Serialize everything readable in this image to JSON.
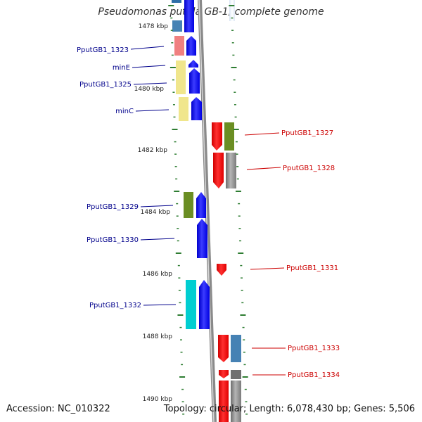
{
  "title": "Pseudomonas putida GB-1, complete genome",
  "footer": {
    "accession": "Accession: NC_010322",
    "summary": "Topology: circular; Length: 6,078,430 bp; Genes: 5,506"
  },
  "colors": {
    "left_label": "#00008b",
    "right_label": "#cc0000",
    "tick": "#2e7d32",
    "backbone": "#8a8a8a",
    "forward_gene": "#0000ff",
    "reverse_gene": "#ff0000"
  },
  "scale": {
    "kbp_labels": [
      "1478 kbp",
      "1480 kbp",
      "1482 kbp",
      "1484 kbp",
      "1486 kbp",
      "1488 kbp",
      "1490 kbp"
    ]
  },
  "genes": {
    "left": [
      {
        "label": "PputGB1_1323",
        "strand": "forward",
        "func_color": "#f08080"
      },
      {
        "label": "minE",
        "strand": "forward",
        "func_color": "#f0e68c"
      },
      {
        "label": "PputGB1_1325",
        "strand": "forward",
        "func_color": "#f0e68c"
      },
      {
        "label": "minC",
        "strand": "forward",
        "func_color": "#f0e68c"
      },
      {
        "label": "PputGB1_1329",
        "strand": "forward",
        "func_color": "#6b8e23"
      },
      {
        "label": "PputGB1_1330",
        "strand": "forward",
        "func_color": ""
      },
      {
        "label": "PputGB1_1332",
        "strand": "forward",
        "func_color": "#00ced1"
      }
    ],
    "right": [
      {
        "label": "PputGB1_1327",
        "strand": "reverse",
        "func_color": "#6b8e23"
      },
      {
        "label": "PputGB1_1328",
        "strand": "reverse",
        "func_color": "#c0c0c0"
      },
      {
        "label": "PputGB1_1331",
        "strand": "reverse",
        "func_color": ""
      },
      {
        "label": "PputGB1_1333",
        "strand": "reverse",
        "func_color": "#4682b4"
      },
      {
        "label": "PputGB1_1334",
        "strand": "reverse",
        "func_color": "#808080"
      }
    ]
  }
}
